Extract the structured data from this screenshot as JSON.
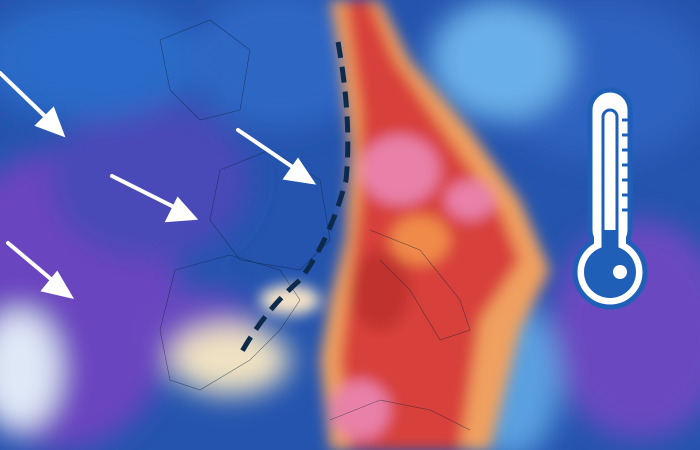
{
  "map": {
    "type": "temperature anomaly weather map",
    "colors": {
      "cold_deep": "#5a3fb0",
      "cold": "#2a5cc0",
      "cool": "#5aa0e0",
      "neutral": "#f3e7c8",
      "warm": "#f08a4a",
      "hot": "#d8383a",
      "very_hot": "#e87aa8",
      "arrow": "#ffffff",
      "front_line": "#0e2a4a",
      "thermometer": "#1f5fb8"
    },
    "icons": [
      "wind-arrow-icon",
      "cold-front-line",
      "thermometer-icon"
    ]
  }
}
